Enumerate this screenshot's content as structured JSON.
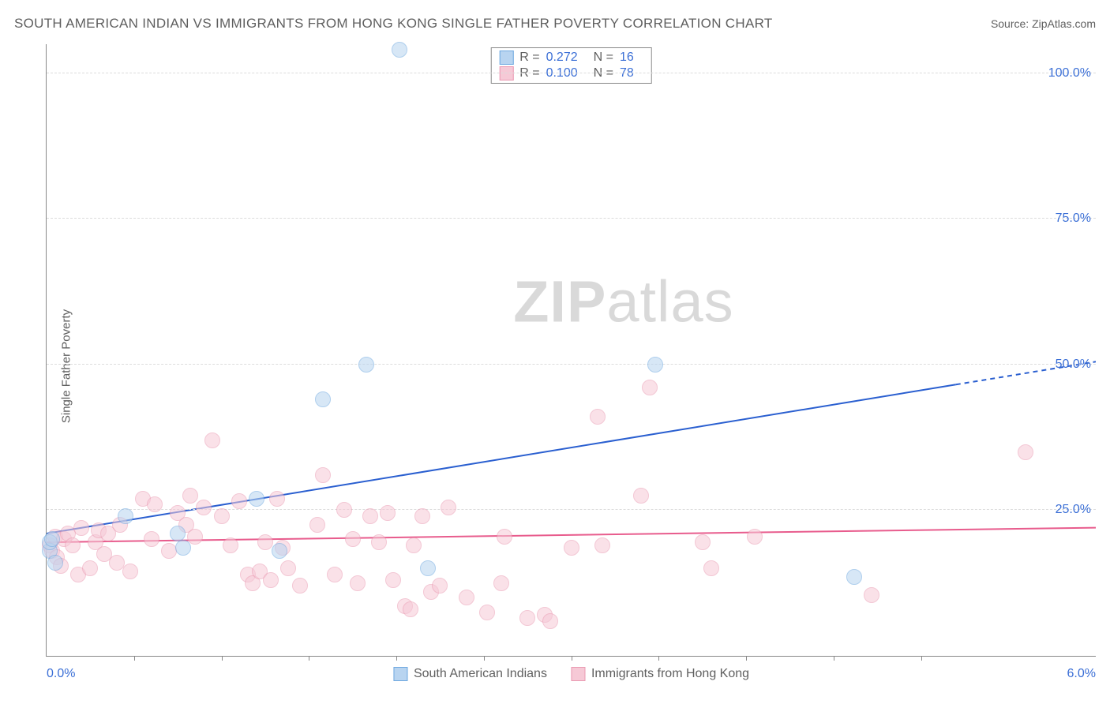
{
  "title": "SOUTH AMERICAN INDIAN VS IMMIGRANTS FROM HONG KONG SINGLE FATHER POVERTY CORRELATION CHART",
  "source": "Source: ZipAtlas.com",
  "ylabel": "Single Father Poverty",
  "watermark_bold": "ZIP",
  "watermark_light": "atlas",
  "chart": {
    "type": "scatter",
    "xlim": [
      0.0,
      6.0
    ],
    "ylim": [
      0.0,
      105.0
    ],
    "x_min_label": "0.0%",
    "x_max_label": "6.0%",
    "y_ticks": [
      25.0,
      50.0,
      75.0,
      100.0
    ],
    "y_tick_labels": [
      "25.0%",
      "50.0%",
      "75.0%",
      "100.0%"
    ],
    "x_tick_positions": [
      0.5,
      1.0,
      1.5,
      2.0,
      2.5,
      3.0,
      3.5,
      4.0,
      4.5,
      5.0
    ],
    "grid_color": "#dcdcdc",
    "axis_color": "#888888",
    "background_color": "#ffffff",
    "marker_radius": 10,
    "marker_opacity": 0.55,
    "series": [
      {
        "name": "South American Indians",
        "fill": "#b8d4f0",
        "stroke": "#6ea8e0",
        "trend_color": "#2a5fd0",
        "trend_width": 2,
        "r": "0.272",
        "n": "16",
        "trend_y_at_xmin": 21.0,
        "trend_y_at_xmax": 50.5,
        "trend_dash_start_x": 5.2,
        "points": [
          [
            0.02,
            18.0
          ],
          [
            0.02,
            19.5
          ],
          [
            0.03,
            20.0
          ],
          [
            0.05,
            16.0
          ],
          [
            0.45,
            24.0
          ],
          [
            0.75,
            21.0
          ],
          [
            0.78,
            18.5
          ],
          [
            1.2,
            27.0
          ],
          [
            1.33,
            18.0
          ],
          [
            1.58,
            44.0
          ],
          [
            1.83,
            50.0
          ],
          [
            2.02,
            104.0
          ],
          [
            2.18,
            15.0
          ],
          [
            3.48,
            50.0
          ],
          [
            4.62,
            13.5
          ]
        ]
      },
      {
        "name": "Immigrants from Hong Kong",
        "fill": "#f6c9d6",
        "stroke": "#ea9ab2",
        "trend_color": "#e85c8d",
        "trend_width": 2,
        "r": "0.100",
        "n": "78",
        "trend_y_at_xmin": 19.5,
        "trend_y_at_xmax": 22.0,
        "trend_dash_start_x": 6.0,
        "points": [
          [
            0.02,
            19.0
          ],
          [
            0.03,
            18.0
          ],
          [
            0.05,
            20.5
          ],
          [
            0.06,
            17.0
          ],
          [
            0.08,
            15.5
          ],
          [
            0.1,
            20.0
          ],
          [
            0.12,
            21.0
          ],
          [
            0.15,
            19.0
          ],
          [
            0.18,
            14.0
          ],
          [
            0.2,
            22.0
          ],
          [
            0.25,
            15.0
          ],
          [
            0.28,
            19.5
          ],
          [
            0.3,
            21.5
          ],
          [
            0.33,
            17.5
          ],
          [
            0.35,
            21.0
          ],
          [
            0.4,
            16.0
          ],
          [
            0.42,
            22.5
          ],
          [
            0.48,
            14.5
          ],
          [
            0.55,
            27.0
          ],
          [
            0.6,
            20.0
          ],
          [
            0.62,
            26.0
          ],
          [
            0.7,
            18.0
          ],
          [
            0.75,
            24.5
          ],
          [
            0.8,
            22.5
          ],
          [
            0.82,
            27.5
          ],
          [
            0.85,
            20.5
          ],
          [
            0.9,
            25.5
          ],
          [
            0.95,
            37.0
          ],
          [
            1.0,
            24.0
          ],
          [
            1.05,
            19.0
          ],
          [
            1.1,
            26.5
          ],
          [
            1.15,
            14.0
          ],
          [
            1.18,
            12.5
          ],
          [
            1.22,
            14.5
          ],
          [
            1.25,
            19.5
          ],
          [
            1.28,
            13.0
          ],
          [
            1.32,
            27.0
          ],
          [
            1.35,
            18.5
          ],
          [
            1.38,
            15.0
          ],
          [
            1.45,
            12.0
          ],
          [
            1.55,
            22.5
          ],
          [
            1.58,
            31.0
          ],
          [
            1.65,
            14.0
          ],
          [
            1.7,
            25.0
          ],
          [
            1.75,
            20.0
          ],
          [
            1.78,
            12.5
          ],
          [
            1.85,
            24.0
          ],
          [
            1.9,
            19.5
          ],
          [
            1.95,
            24.5
          ],
          [
            1.98,
            13.0
          ],
          [
            2.05,
            8.5
          ],
          [
            2.08,
            8.0
          ],
          [
            2.1,
            19.0
          ],
          [
            2.15,
            24.0
          ],
          [
            2.2,
            11.0
          ],
          [
            2.25,
            12.0
          ],
          [
            2.3,
            25.5
          ],
          [
            2.4,
            10.0
          ],
          [
            2.52,
            7.5
          ],
          [
            2.6,
            12.5
          ],
          [
            2.62,
            20.5
          ],
          [
            2.75,
            6.5
          ],
          [
            2.85,
            7.0
          ],
          [
            2.88,
            6.0
          ],
          [
            3.0,
            18.5
          ],
          [
            3.15,
            41.0
          ],
          [
            3.18,
            19.0
          ],
          [
            3.4,
            27.5
          ],
          [
            3.45,
            46.0
          ],
          [
            3.75,
            19.5
          ],
          [
            3.8,
            15.0
          ],
          [
            4.05,
            20.5
          ],
          [
            4.72,
            10.5
          ],
          [
            5.6,
            35.0
          ]
        ]
      }
    ]
  }
}
